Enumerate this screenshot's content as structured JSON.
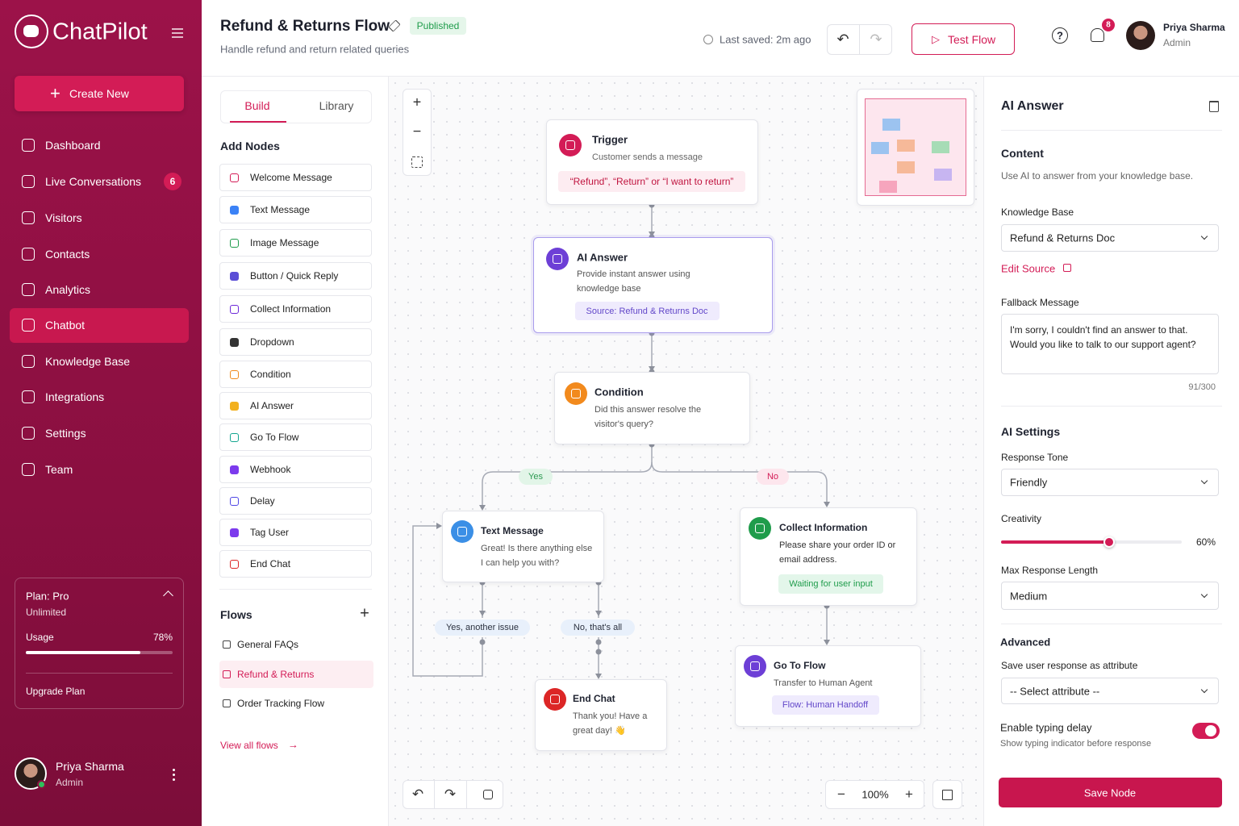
{
  "sidebar": {
    "brand": "ChatPilot",
    "create_button": "Create New",
    "nav": [
      {
        "label": "Dashboard"
      },
      {
        "label": "Live Conversations",
        "badge": "6"
      },
      {
        "label": "Visitors"
      },
      {
        "label": "Contacts"
      },
      {
        "label": "Analytics"
      },
      {
        "label": "Chatbot"
      },
      {
        "label": "Knowledge Base"
      },
      {
        "label": "Integrations"
      },
      {
        "label": "Settings"
      },
      {
        "label": "Team"
      }
    ],
    "plan": {
      "title": "Plan: Pro",
      "subtitle": "Unlimited",
      "usage_label": "Usage",
      "usage": 78,
      "usage_value_label": "78%",
      "upgrade": "Upgrade Plan"
    },
    "user": {
      "name": "Priya Sharma",
      "role": "Admin"
    }
  },
  "header": {
    "title": "Refund & Returns Flow",
    "status": "Published",
    "subtitle": "Handle refund and return related queries",
    "last_saved": "Last saved: 2m ago",
    "test_button": "Test Flow",
    "notifications": "8",
    "user": {
      "name": "Priya Sharma",
      "role": "Admin"
    }
  },
  "builder": {
    "tabs": [
      "Build",
      "Library"
    ],
    "add_nodes_title": "Add Nodes",
    "node_types": [
      "Welcome Message",
      "Text Message",
      "Image Message",
      "Button / Quick Reply",
      "Collect Information",
      "Dropdown",
      "Condition",
      "AI Answer",
      "Go To Flow",
      "Webhook",
      "Delay",
      "Tag User",
      "End Chat"
    ],
    "flows_title": "Flows",
    "flows": [
      "General FAQs",
      "Refund & Returns",
      "Order Tracking Flow"
    ],
    "view_all": "View all flows"
  },
  "canvas": {
    "nodes": {
      "trigger": {
        "title": "Trigger",
        "description": "Customer sends a message",
        "tag": "“Refund”, “Return” or “I want to return”"
      },
      "ai_answer": {
        "title": "AI Answer",
        "description": "Provide instant answer using knowledge base",
        "tag": "Source: Refund & Returns Doc"
      },
      "condition": {
        "title": "Condition",
        "description": "Did this answer resolve the visitor's query?"
      },
      "text_message": {
        "title": "Text Message",
        "description": "Great! Is there anything else I can help you with?"
      },
      "collect_information": {
        "title": "Collect Information",
        "description": "Please share your order ID or email address.",
        "tag": "Waiting for user input"
      },
      "end_chat": {
        "title": "End Chat",
        "description": "Thank you! Have a great day! 👋"
      },
      "go_to_flow": {
        "title": "Go To Flow",
        "description": "Transfer to Human Agent",
        "tag": "Flow: Human Handoff"
      }
    },
    "edge_labels": {
      "yes": "Yes",
      "no": "No",
      "another_issue": "Yes, another issue",
      "thats_all": "No, that's all"
    },
    "zoom": "100%"
  },
  "inspector": {
    "title": "AI Answer",
    "content_title": "Content",
    "content_description": "Use AI to answer from your knowledge base.",
    "knowledge_base_label": "Knowledge Base",
    "knowledge_base_value": "Refund & Returns Doc",
    "edit_source": "Edit Source",
    "fallback_label": "Fallback Message",
    "fallback_text": "I'm sorry, I couldn't find an answer to that. Would you like to talk to our support agent?",
    "char_count": "91/300",
    "ai_settings_title": "AI Settings",
    "tone_label": "Response Tone",
    "tone_value": "Friendly",
    "creativity_label": "Creativity",
    "creativity": 60,
    "creativity_value_label": "60%",
    "max_length_label": "Max Response Length",
    "max_length_value": "Medium",
    "advanced_title": "Advanced",
    "save_attribute_label": "Save user response as attribute",
    "save_attribute_value": "-- Select attribute --",
    "typing_delay_title": "Enable typing delay",
    "typing_delay_description": "Show typing indicator before response",
    "save_button": "Save Node"
  }
}
